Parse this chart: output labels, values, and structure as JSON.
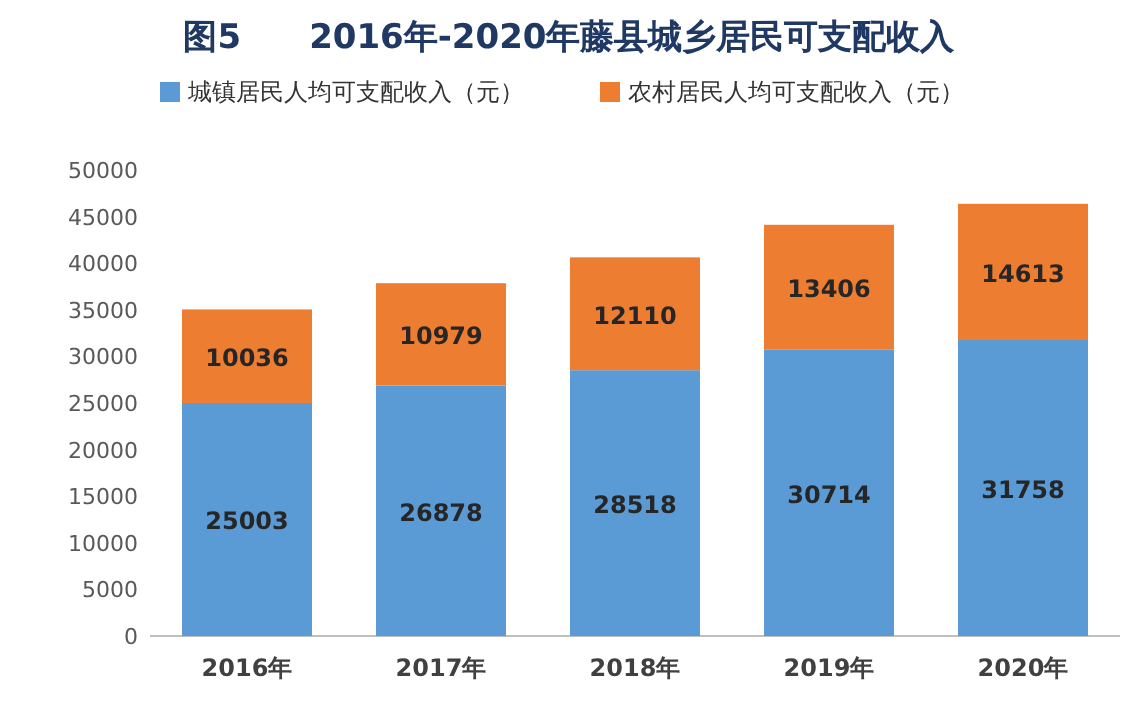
{
  "chart_data": {
    "type": "bar",
    "title": "图5　　2016年-2020年藤县城乡居民可支配收入",
    "categories": [
      "2016年",
      "2017年",
      "2018年",
      "2019年",
      "2020年"
    ],
    "series": [
      {
        "name": "城镇居民人均可支配收入（元）",
        "color": "#5b9bd5",
        "values": [
          25003,
          26878,
          28518,
          30714,
          31758
        ]
      },
      {
        "name": "农村居民人均可支配收入（元）",
        "color": "#ed7d31",
        "values": [
          10036,
          10979,
          12110,
          13406,
          14613
        ]
      }
    ],
    "stacked": true,
    "data_labels": true,
    "legend": "top",
    "grid": false,
    "ylim": [
      0,
      50000
    ],
    "yticks": [
      0,
      5000,
      10000,
      15000,
      20000,
      25000,
      30000,
      35000,
      40000,
      45000,
      50000
    ]
  }
}
